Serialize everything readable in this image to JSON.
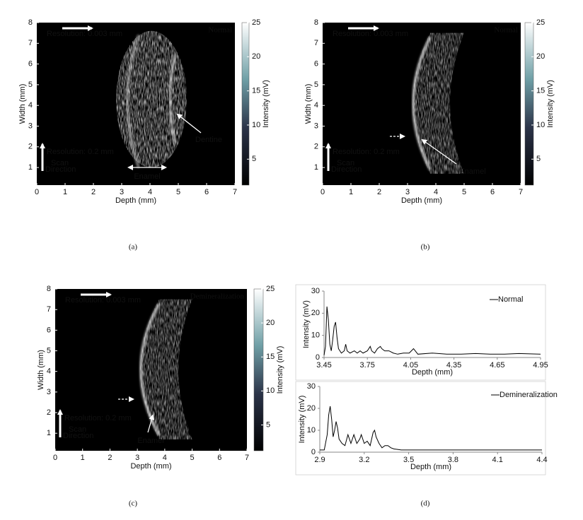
{
  "panel_labels": [
    "(a)",
    "(b)",
    "(c)",
    "(d)"
  ],
  "chart_data": [
    {
      "type": "image",
      "xlabel": "Depth (mm)",
      "ylabel": "Width (mm)",
      "xlim": [
        0,
        7
      ],
      "ylim": [
        0.15,
        8
      ],
      "xticks": [
        0,
        1,
        2,
        3,
        4,
        5,
        6,
        7
      ],
      "yticks": [
        1,
        2,
        3,
        4,
        5,
        6,
        7,
        8
      ],
      "colorbar": {
        "label": "Intensity (mV)",
        "lim": [
          1.2,
          25
        ],
        "ticks": [
          5,
          10,
          15,
          20,
          25
        ]
      },
      "annotations": {
        "condition": "Normal",
        "res_depth": "Resolution: 0.003 mm",
        "res_width": "Resolution: 0.2 mm",
        "scan": [
          "Scan",
          "Direction"
        ],
        "feature": "Enamel",
        "feature2": "Dentine"
      }
    },
    {
      "type": "image",
      "xlabel": "Depth (mm)",
      "ylabel": "Width (mm)",
      "xlim": [
        0,
        7
      ],
      "ylim": [
        0.15,
        8
      ],
      "xticks": [
        0,
        1,
        2,
        3,
        4,
        5,
        6,
        7
      ],
      "yticks": [
        1,
        2,
        3,
        4,
        5,
        6,
        7,
        8
      ],
      "colorbar": {
        "label": "Intensity (mV)",
        "lim": [
          1.2,
          25
        ],
        "ticks": [
          5,
          10,
          15,
          20,
          25
        ]
      },
      "annotations": {
        "condition": "Normal",
        "res_depth": "Resolution: 0.003 mm",
        "res_width": "Resolution: 0.2 mm",
        "scan": [
          "Scan",
          "Direction"
        ],
        "feature": "Enamel"
      }
    },
    {
      "type": "image",
      "xlabel": "Depth (mm)",
      "ylabel": "Width (mm)",
      "xlim": [
        0,
        7
      ],
      "ylim": [
        0.15,
        8
      ],
      "xticks": [
        0,
        1,
        2,
        3,
        4,
        5,
        6,
        7
      ],
      "yticks": [
        1,
        2,
        3,
        4,
        5,
        6,
        7,
        8
      ],
      "colorbar": {
        "label": "Intensity (mV)",
        "lim": [
          1.2,
          25
        ],
        "ticks": [
          5,
          10,
          15,
          20,
          25
        ]
      },
      "annotations": {
        "condition": "Demineralization",
        "res_depth": "Resolution: 0.003 mm",
        "res_width": "Resolution: 0.2 mm",
        "scan": [
          "Scan",
          "Direction"
        ],
        "feature": "Enamel"
      }
    },
    {
      "type": "line",
      "xlabel": "Depth (mm)",
      "ylabel": "Intensity (mV)",
      "xlim": [
        3.45,
        4.95
      ],
      "ylim": [
        0,
        30
      ],
      "xticks": [
        3.45,
        3.75,
        4.05,
        4.35,
        4.65,
        4.95
      ],
      "yticks": [
        0,
        10,
        20,
        30
      ],
      "x": [
        3.45,
        3.46,
        3.47,
        3.48,
        3.49,
        3.5,
        3.51,
        3.52,
        3.53,
        3.54,
        3.55,
        3.57,
        3.59,
        3.6,
        3.61,
        3.63,
        3.66,
        3.68,
        3.7,
        3.72,
        3.75,
        3.77,
        3.78,
        3.8,
        3.82,
        3.84,
        3.85,
        3.87,
        3.9,
        3.93,
        3.96,
        4.0,
        4.04,
        4.07,
        4.1,
        4.2,
        4.3,
        4.4,
        4.5,
        4.6,
        4.7,
        4.8,
        4.95
      ],
      "series": [
        {
          "name": "Normal",
          "color": "#000000",
          "values": [
            1,
            5,
            23,
            17,
            6,
            3,
            8,
            14,
            16,
            9,
            4,
            2,
            3,
            6,
            3,
            2,
            3,
            2,
            3,
            2,
            3,
            5,
            3,
            2,
            4,
            5,
            4,
            3,
            3,
            2,
            1.5,
            2,
            2,
            4,
            1.5,
            2,
            1.5,
            1.5,
            1.8,
            1.5,
            1.5,
            1.8,
            1.5
          ]
        }
      ]
    },
    {
      "type": "line",
      "xlabel": "Depth (mm)",
      "ylabel": "Intensity (mV)",
      "xlim": [
        2.9,
        4.4
      ],
      "ylim": [
        0,
        30
      ],
      "xticks": [
        2.9,
        3.2,
        3.5,
        3.8,
        4.1,
        4.4
      ],
      "yticks": [
        0,
        10,
        20,
        30
      ],
      "x": [
        2.9,
        2.93,
        2.95,
        2.96,
        2.97,
        2.98,
        2.99,
        3.0,
        3.01,
        3.02,
        3.03,
        3.05,
        3.07,
        3.09,
        3.11,
        3.13,
        3.15,
        3.17,
        3.18,
        3.2,
        3.22,
        3.24,
        3.26,
        3.27,
        3.28,
        3.3,
        3.32,
        3.34,
        3.36,
        3.38,
        3.4,
        3.45,
        3.5,
        3.6,
        3.8,
        4.0,
        4.2,
        4.4
      ],
      "series": [
        {
          "name": "Demineralization",
          "color": "#000000",
          "values": [
            1,
            1,
            8,
            17,
            21,
            15,
            7,
            10,
            14,
            11,
            6,
            4,
            3,
            8,
            4,
            8,
            4,
            6,
            8,
            4,
            5,
            3,
            9,
            10,
            7,
            4,
            2,
            3,
            3,
            2,
            1.5,
            1,
            1,
            1,
            1,
            1,
            1,
            1
          ]
        }
      ]
    }
  ]
}
